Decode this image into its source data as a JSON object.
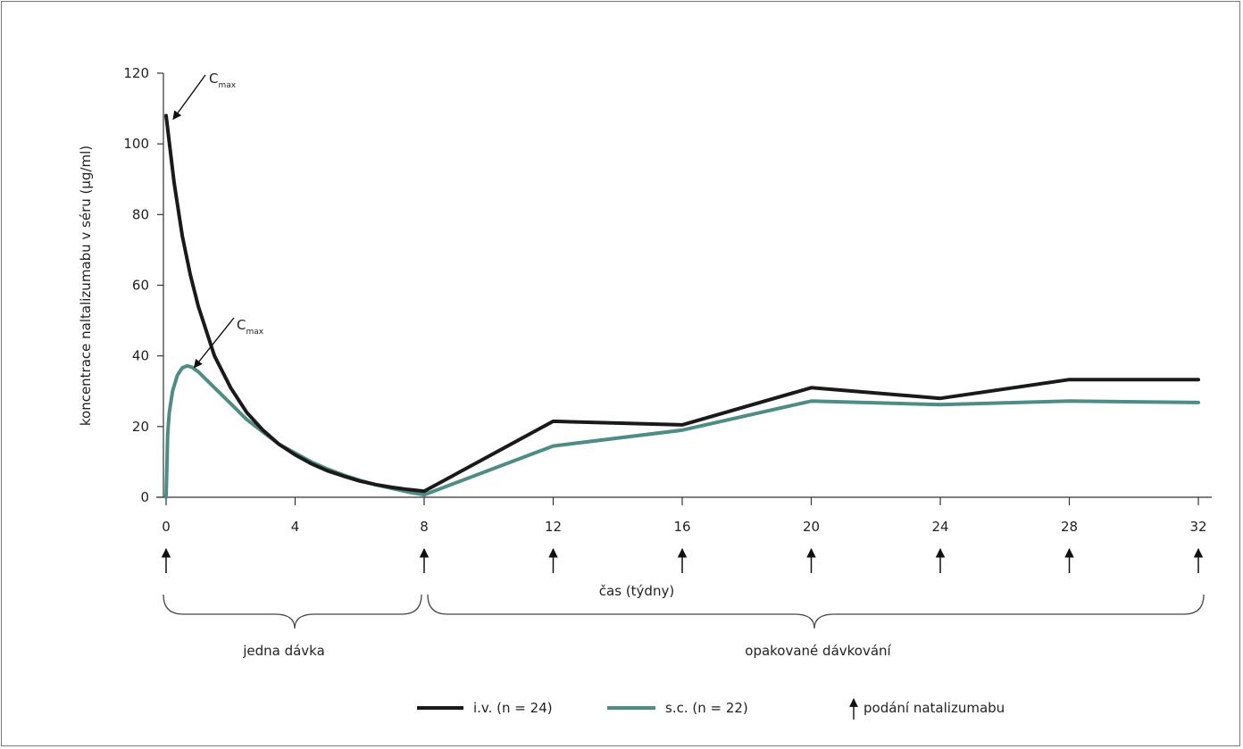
{
  "chart_data": {
    "type": "line",
    "xlabel": "čas (týdny)",
    "ylabel": "koncentrace naltalizumabu v séru (µg/ml)",
    "xlim": [
      0,
      32
    ],
    "ylim": [
      0,
      120
    ],
    "x_ticks": [
      "0",
      "4",
      "8",
      "12",
      "16",
      "20",
      "24",
      "28",
      "32"
    ],
    "y_ticks": [
      "0",
      "20",
      "40",
      "60",
      "80",
      "100",
      "120"
    ],
    "grid": false,
    "series": [
      {
        "name": "i.v. (n = 24)",
        "color": "#1a1a1a",
        "x": [
          0,
          0.25,
          0.5,
          0.75,
          1,
          1.5,
          2,
          2.5,
          3,
          3.5,
          4,
          4.5,
          5,
          5.5,
          6,
          6.5,
          7,
          7.5,
          8,
          12,
          16,
          20,
          24,
          28,
          32
        ],
        "y": [
          108,
          89,
          74,
          63,
          54,
          40,
          31,
          24,
          19,
          15,
          12,
          9.5,
          7.5,
          6,
          4.6,
          3.6,
          2.8,
          2.2,
          1.7,
          21.5,
          20.5,
          31,
          28,
          33.3,
          33.3
        ]
      },
      {
        "name": "s.c. (n = 22)",
        "color": "#4f8c84",
        "x": [
          0,
          0.05,
          0.1,
          0.2,
          0.35,
          0.5,
          0.65,
          0.8,
          1,
          1.5,
          2,
          2.5,
          3,
          3.5,
          4,
          4.5,
          5,
          5.5,
          6,
          6.5,
          7,
          7.5,
          8,
          12,
          16,
          20,
          24,
          28,
          32
        ],
        "y": [
          0,
          18,
          24,
          30,
          34.5,
          36.6,
          37.2,
          36.8,
          35.5,
          31,
          26.5,
          22,
          18.5,
          15,
          12.5,
          10,
          8,
          6.3,
          4.8,
          3.5,
          2.5,
          1.5,
          0.7,
          14.5,
          19,
          27.2,
          26.2,
          27.2,
          26.8
        ]
      }
    ],
    "dosing_weeks": [
      0,
      8,
      12,
      16,
      20,
      24,
      28,
      32
    ],
    "annotations": [
      {
        "text": "C",
        "sub": "max",
        "target_series": "i.v. (n = 24)",
        "x": 0,
        "y": 108
      },
      {
        "text": "C",
        "sub": "max",
        "target_series": "s.c. (n = 22)",
        "x": 0.65,
        "y": 37.2
      }
    ],
    "brace_labels": {
      "single": "jedna dávka",
      "repeated": "opakované dávkování"
    },
    "legend": {
      "placement": "bottom",
      "dosing_label": "podání natalizumabu"
    }
  }
}
